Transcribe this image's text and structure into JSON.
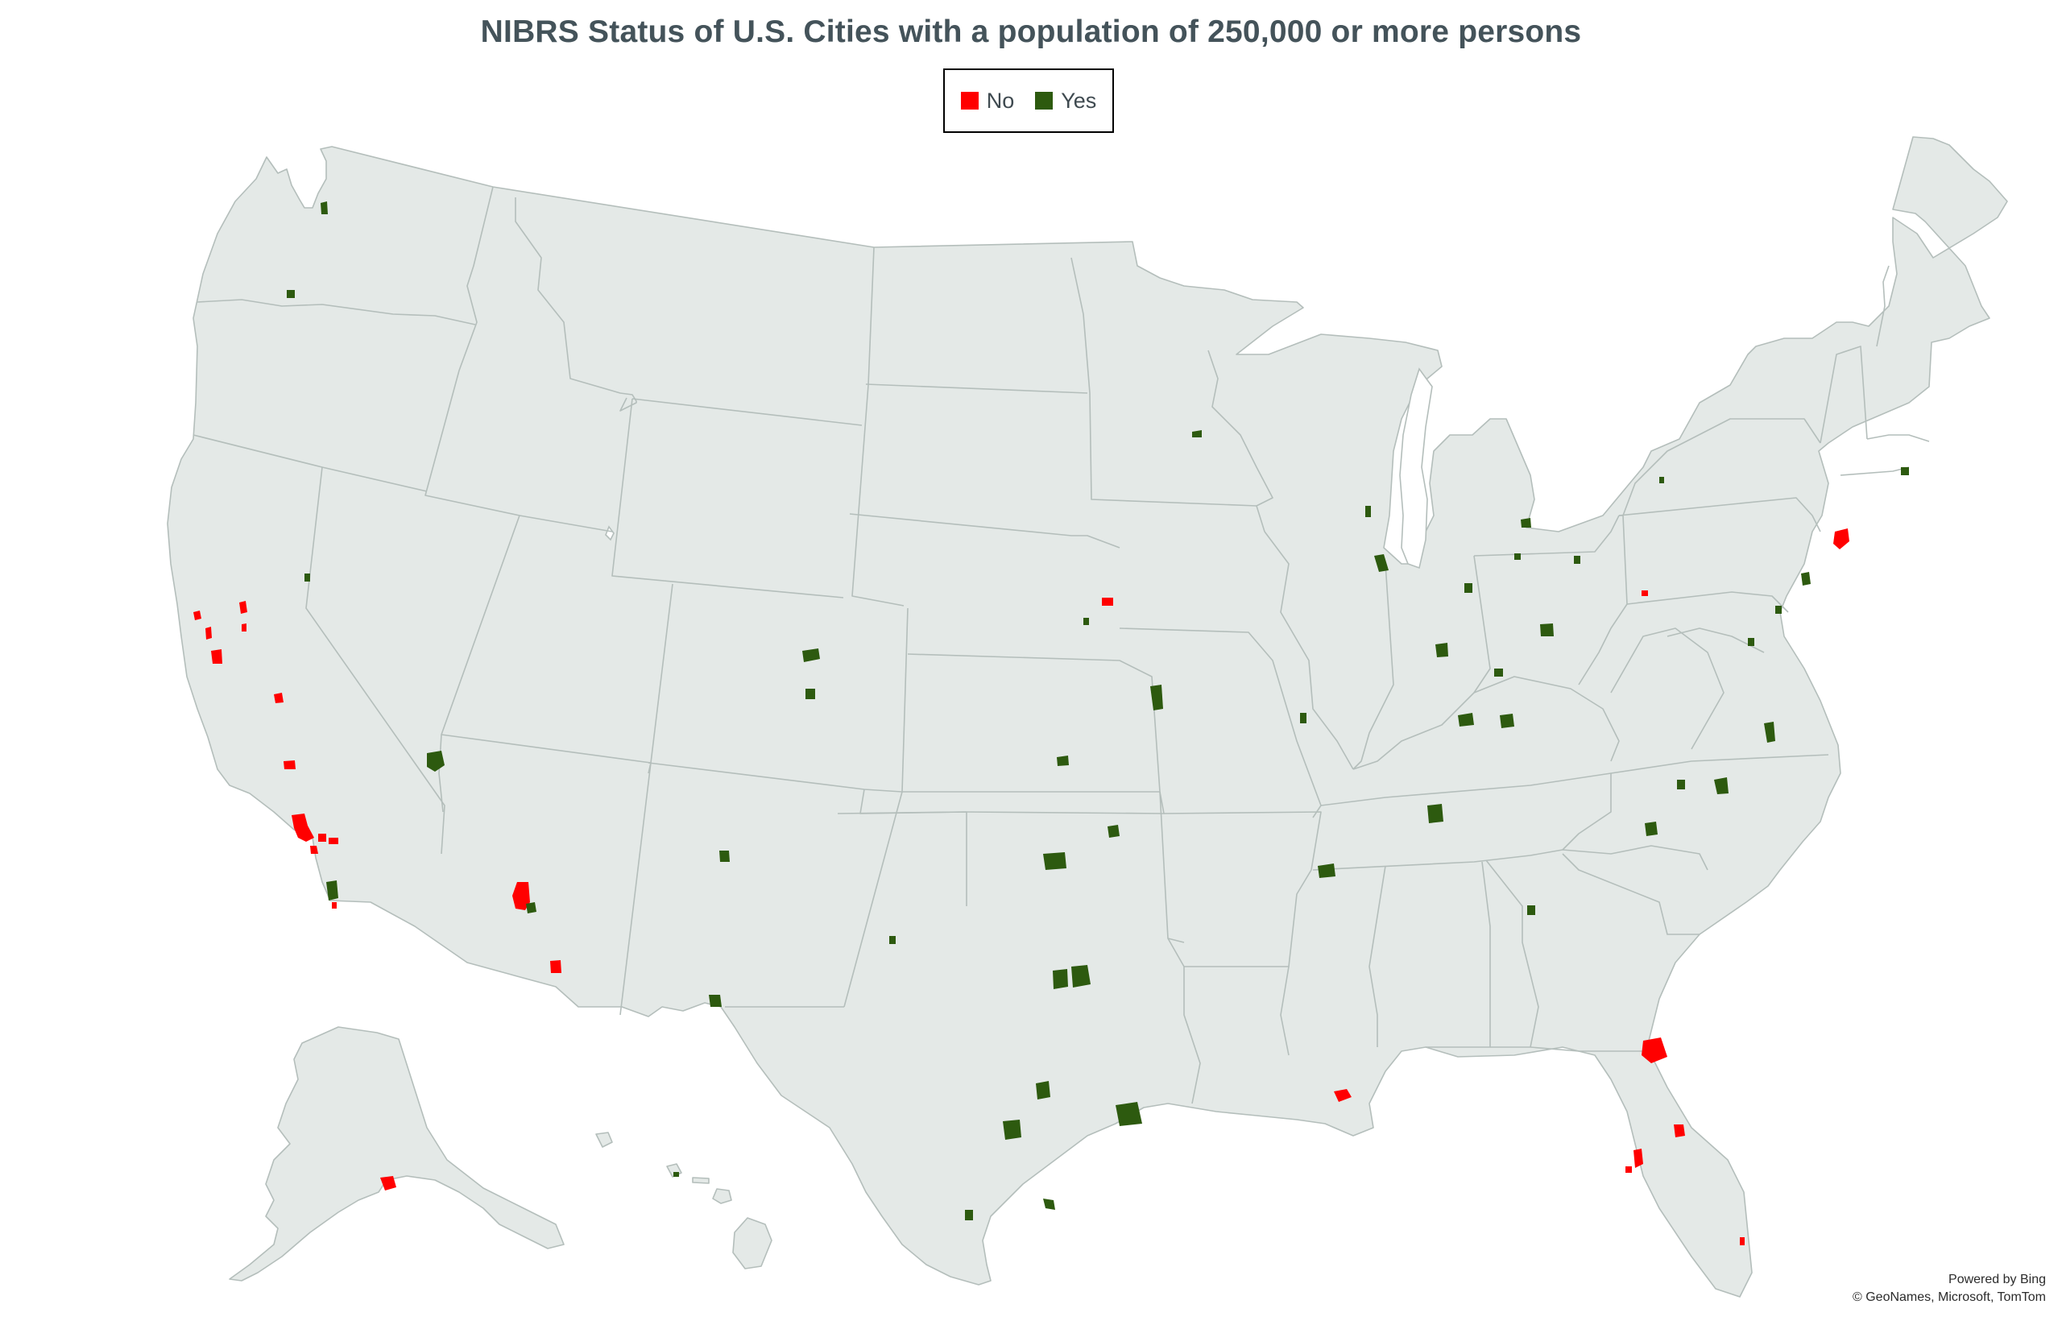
{
  "title": "NIBRS Status of U.S. Cities with a population of 250,000 or more persons",
  "legend": {
    "items": [
      {
        "label": "No",
        "color": "#ff0000"
      },
      {
        "label": "Yes",
        "color": "#2d5a0f"
      }
    ]
  },
  "attribution": {
    "line1": "Powered by Bing",
    "line2": "© GeoNames, Microsoft, TomTom"
  },
  "colors": {
    "land": "#e4e9e7",
    "border": "#b4bebb",
    "no": "#ff0000",
    "yes": "#2d5a0f"
  },
  "cities": [
    {
      "name": "Seattle",
      "status": "Yes"
    },
    {
      "name": "Portland",
      "status": "Yes"
    },
    {
      "name": "Sacramento",
      "status": "No"
    },
    {
      "name": "San Francisco",
      "status": "No"
    },
    {
      "name": "Oakland",
      "status": "No"
    },
    {
      "name": "Stockton",
      "status": "No"
    },
    {
      "name": "San Jose",
      "status": "No"
    },
    {
      "name": "Fresno",
      "status": "No"
    },
    {
      "name": "Bakersfield",
      "status": "No"
    },
    {
      "name": "Los Angeles",
      "status": "No"
    },
    {
      "name": "Long Beach",
      "status": "No"
    },
    {
      "name": "Anaheim",
      "status": "No"
    },
    {
      "name": "Santa Ana",
      "status": "No"
    },
    {
      "name": "Riverside",
      "status": "No"
    },
    {
      "name": "Irvine",
      "status": "No"
    },
    {
      "name": "San Diego",
      "status": "Yes"
    },
    {
      "name": "Chula Vista",
      "status": "No"
    },
    {
      "name": "Reno",
      "status": "Yes"
    },
    {
      "name": "Las Vegas",
      "status": "Yes"
    },
    {
      "name": "Henderson",
      "status": "Yes"
    },
    {
      "name": "Phoenix",
      "status": "No"
    },
    {
      "name": "Mesa",
      "status": "Yes"
    },
    {
      "name": "Chandler",
      "status": "Yes"
    },
    {
      "name": "Gilbert",
      "status": "Yes"
    },
    {
      "name": "Tucson",
      "status": "No"
    },
    {
      "name": "Denver",
      "status": "Yes"
    },
    {
      "name": "Aurora",
      "status": "Yes"
    },
    {
      "name": "Colorado Springs",
      "status": "Yes"
    },
    {
      "name": "Albuquerque",
      "status": "Yes"
    },
    {
      "name": "El Paso",
      "status": "Yes"
    },
    {
      "name": "Lubbock",
      "status": "Yes"
    },
    {
      "name": "Fort Worth",
      "status": "Yes"
    },
    {
      "name": "Arlington",
      "status": "Yes"
    },
    {
      "name": "Dallas",
      "status": "Yes"
    },
    {
      "name": "Plano",
      "status": "Yes"
    },
    {
      "name": "Austin",
      "status": "Yes"
    },
    {
      "name": "San Antonio",
      "status": "Yes"
    },
    {
      "name": "Houston",
      "status": "Yes"
    },
    {
      "name": "Corpus Christi",
      "status": "Yes"
    },
    {
      "name": "Laredo",
      "status": "Yes"
    },
    {
      "name": "Oklahoma City",
      "status": "Yes"
    },
    {
      "name": "Tulsa",
      "status": "Yes"
    },
    {
      "name": "Wichita",
      "status": "Yes"
    },
    {
      "name": "Omaha",
      "status": "No"
    },
    {
      "name": "Lincoln",
      "status": "Yes"
    },
    {
      "name": "Kansas City",
      "status": "Yes"
    },
    {
      "name": "St. Louis",
      "status": "Yes"
    },
    {
      "name": "Minneapolis",
      "status": "Yes"
    },
    {
      "name": "St. Paul",
      "status": "Yes"
    },
    {
      "name": "Milwaukee",
      "status": "Yes"
    },
    {
      "name": "Chicago",
      "status": "Yes"
    },
    {
      "name": "Fort Wayne",
      "status": "Yes"
    },
    {
      "name": "Indianapolis",
      "status": "Yes"
    },
    {
      "name": "Detroit",
      "status": "Yes"
    },
    {
      "name": "Toledo",
      "status": "Yes"
    },
    {
      "name": "Cleveland",
      "status": "Yes"
    },
    {
      "name": "Columbus",
      "status": "Yes"
    },
    {
      "name": "Cincinnati",
      "status": "Yes"
    },
    {
      "name": "Louisville",
      "status": "Yes"
    },
    {
      "name": "Lexington",
      "status": "Yes"
    },
    {
      "name": "Nashville",
      "status": "Yes"
    },
    {
      "name": "Memphis",
      "status": "Yes"
    },
    {
      "name": "Atlanta",
      "status": "Yes"
    },
    {
      "name": "Charlotte",
      "status": "Yes"
    },
    {
      "name": "Greensboro",
      "status": "Yes"
    },
    {
      "name": "Durham",
      "status": "Yes"
    },
    {
      "name": "Raleigh",
      "status": "Yes"
    },
    {
      "name": "Virginia Beach",
      "status": "Yes"
    },
    {
      "name": "Norfolk",
      "status": "Yes"
    },
    {
      "name": "Chesapeake",
      "status": "Yes"
    },
    {
      "name": "Washington",
      "status": "Yes"
    },
    {
      "name": "Baltimore",
      "status": "Yes"
    },
    {
      "name": "Philadelphia",
      "status": "Yes"
    },
    {
      "name": "Pittsburgh",
      "status": "No"
    },
    {
      "name": "Newark",
      "status": "Yes"
    },
    {
      "name": "Jersey City",
      "status": "No"
    },
    {
      "name": "New York",
      "status": "No"
    },
    {
      "name": "Buffalo",
      "status": "Yes"
    },
    {
      "name": "Boston",
      "status": "Yes"
    },
    {
      "name": "New Orleans",
      "status": "No"
    },
    {
      "name": "Jacksonville",
      "status": "No"
    },
    {
      "name": "Orlando",
      "status": "No"
    },
    {
      "name": "Tampa",
      "status": "No"
    },
    {
      "name": "St. Petersburg",
      "status": "No"
    },
    {
      "name": "Miami",
      "status": "No"
    },
    {
      "name": "Anchorage",
      "status": "No"
    },
    {
      "name": "Honolulu",
      "status": "Yes"
    }
  ]
}
